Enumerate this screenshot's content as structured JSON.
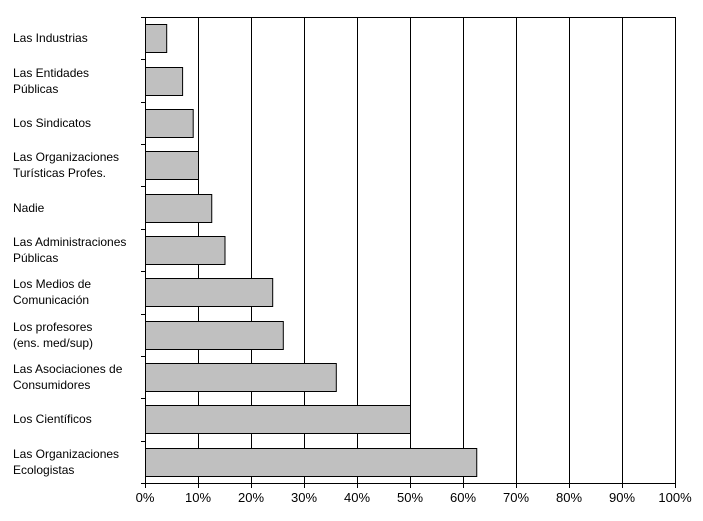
{
  "chart_data": {
    "type": "bar",
    "orientation": "horizontal",
    "title": "",
    "xlabel": "",
    "ylabel": "",
    "categories": [
      "Las Industrias",
      "Las Entidades\nPúblicas",
      "Los Sindicatos",
      "Las Organizaciones\nTurísticas Profes.",
      "Nadie",
      "Las Administraciones\nPúblicas",
      "Los Medios de\nComunicación",
      "Los profesores\n(ens. med/sup)",
      "Las Asociaciones de\nConsumidores",
      "Los Científicos",
      "Las Organizaciones\nEcologistas"
    ],
    "values": [
      4,
      7,
      9,
      10,
      12.5,
      15,
      24,
      26,
      36,
      50,
      62.5
    ],
    "xlim": [
      0,
      100
    ],
    "ticks": [
      "0%",
      "10%",
      "20%",
      "30%",
      "40%",
      "50%",
      "60%",
      "70%",
      "80%",
      "90%",
      "100%"
    ],
    "grid": "vertical",
    "bar_color": "#c0c0c0",
    "bar_border_color": "#000000"
  }
}
